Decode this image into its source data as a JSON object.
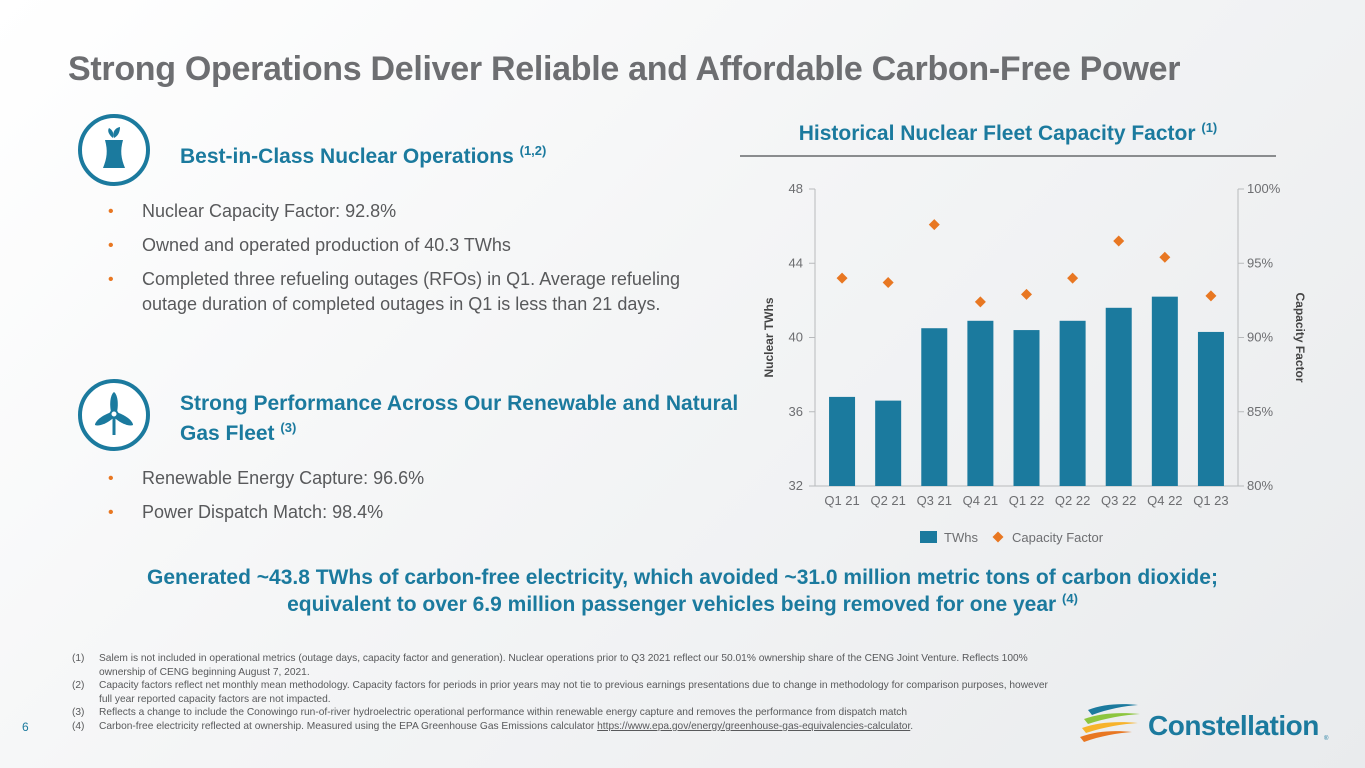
{
  "title": "Strong Operations Deliver Reliable and Affordable Carbon-Free Power",
  "nuclear": {
    "heading": "Best-in-Class Nuclear Operations",
    "heading_note": "(1,2)",
    "icon": "nuclear-plant-icon",
    "bullets": [
      "Nuclear Capacity Factor: 92.8%",
      "Owned and operated production of 40.3 TWhs",
      "Completed three refueling outages (RFOs) in Q1. Average refueling outage duration of completed outages in Q1 is less than 21 days."
    ]
  },
  "renewable": {
    "heading": "Strong Performance Across Our Renewable and Natural Gas Fleet",
    "heading_note": "(3)",
    "icon": "wind-turbine-icon",
    "bullets": [
      "Renewable Energy Capture: 96.6%",
      "Power Dispatch Match: 98.4%"
    ]
  },
  "chart_data": {
    "type": "bar",
    "title": "Historical Nuclear Fleet Capacity Factor",
    "title_note": "(1)",
    "categories": [
      "Q1 21",
      "Q2 21",
      "Q3 21",
      "Q4 21",
      "Q1 22",
      "Q2 22",
      "Q3 22",
      "Q4 22",
      "Q1 23"
    ],
    "series": [
      {
        "name": "TWhs",
        "type": "bar",
        "axis": "left",
        "color": "#1b7a9e",
        "values": [
          36.8,
          36.6,
          40.5,
          40.9,
          40.4,
          40.9,
          41.6,
          42.2,
          40.3
        ]
      },
      {
        "name": "Capacity Factor",
        "type": "scatter",
        "axis": "right",
        "marker": "diamond",
        "color": "#e87722",
        "values": [
          94.0,
          93.7,
          97.6,
          92.4,
          92.9,
          94.0,
          96.5,
          95.4,
          92.8
        ]
      }
    ],
    "ylabel": "Nuclear TWhs",
    "ylim": [
      32,
      48
    ],
    "yticks": [
      "32",
      "36",
      "40",
      "44",
      "48"
    ],
    "ylabel_right": "Capacity Factor",
    "ylim_right": [
      80,
      100
    ],
    "yticks_right": [
      "80%",
      "85%",
      "90%",
      "95%",
      "100%"
    ],
    "legend_position": "bottom"
  },
  "summary": {
    "line1": "Generated ~43.8 TWhs of carbon-free electricity, which avoided ~31.0 million metric tons of carbon dioxide;",
    "line2": "equivalent to over 6.9 million passenger vehicles being removed for one year",
    "note": "(4)"
  },
  "footnotes": [
    {
      "num": "(1)",
      "text": "Salem is not included in operational metrics (outage days, capacity factor and generation). Nuclear operations prior to Q3 2021 reflect our 50.01% ownership share of the CENG Joint Venture. Reflects 100% ownership of CENG beginning August 7, 2021."
    },
    {
      "num": "(2)",
      "text": "Capacity factors reflect net monthly mean methodology. Capacity factors for periods in prior years may not tie to previous earnings presentations due to change in methodology for comparison purposes, however full year reported capacity factors are not impacted."
    },
    {
      "num": "(3)",
      "text": "Reflects a change to include the Conowingo run-of-river hydroelectric operational performance within renewable energy capture and removes the performance from dispatch match"
    },
    {
      "num": "(4)",
      "text": "Carbon-free electricity reflected at ownership. Measured using the EPA Greenhouse Gas Emissions calculator",
      "link": "https://www.epa.gov/energy/greenhouse-gas-equivalencies-calculator",
      "tail": "."
    }
  ],
  "page_number": "6",
  "logo": {
    "name": "Constellation",
    "reg": "®",
    "icon": "constellation-swoosh-logo"
  },
  "colors": {
    "brand_blue": "#1b7a9e",
    "accent_orange": "#e87722",
    "title_gray": "#6d6e71",
    "text_gray": "#58595b"
  }
}
